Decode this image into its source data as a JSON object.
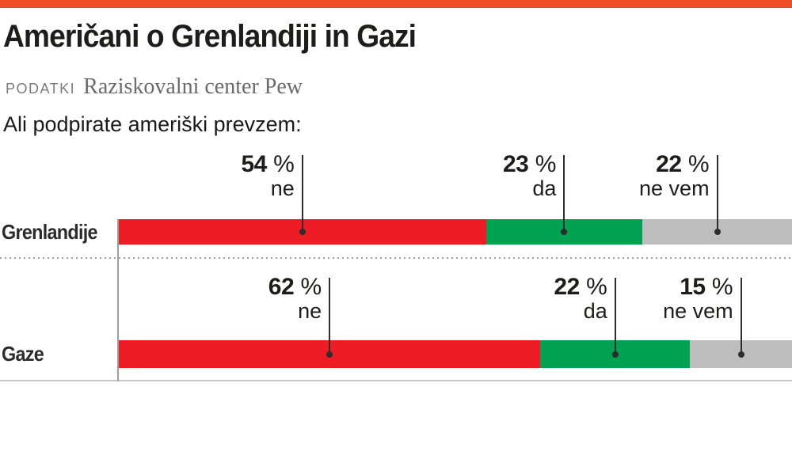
{
  "header": {
    "title": "Američani o Grenlandiji in Gazi",
    "source_label": "PODATKI",
    "source": "Raziskovalni center Pew"
  },
  "question": "Ali podpirate ameriški prevzem:",
  "colors": {
    "accent_orange": "#f04c25",
    "no_red": "#ec1b24",
    "yes_green": "#00a150",
    "dontknow_gray": "#bdbdbd"
  },
  "chart_data": {
    "type": "bar",
    "variant": "horizontal-stacked-100",
    "title": "Ali podpirate ameriški prevzem:",
    "unit": "%",
    "value_suffix": " %",
    "categories": [
      "Grenlandije",
      "Gaze"
    ],
    "series": [
      {
        "name": "ne",
        "color": "#ec1b24",
        "values": [
          54,
          62
        ]
      },
      {
        "name": "da",
        "color": "#00a150",
        "values": [
          23,
          22
        ]
      },
      {
        "name": "ne vem",
        "color": "#bdbdbd",
        "values": [
          22,
          15
        ]
      }
    ],
    "legend": "inline-callouts-above-segments",
    "grid": false,
    "xlim": [
      0,
      99
    ]
  }
}
